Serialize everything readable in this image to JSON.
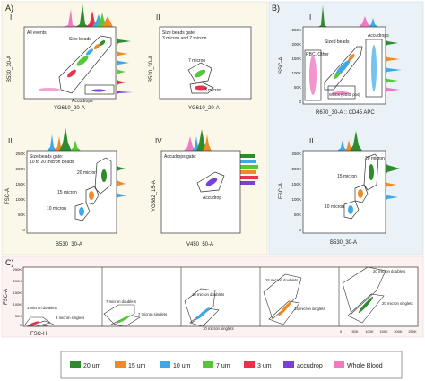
{
  "colors": {
    "um20": "#2e8b2e",
    "um15": "#f08a24",
    "um10": "#3fa9e6",
    "um7": "#55c83a",
    "um3": "#e8324a",
    "accudrop": "#7a3fd6",
    "blood": "#f07ac0",
    "bgA": "#fbf8ea",
    "bgB": "#eaf1f7",
    "bgC": "#fdf2f2"
  },
  "sections": {
    "A": "A)",
    "B": "B)",
    "C": "C)"
  },
  "panelA1": {
    "roman": "I",
    "label": "All events",
    "gate_size": "Size beads",
    "gate_accu": "Accudrops",
    "xlabel": "YG610_20-A",
    "ylabel": "B530_30-A"
  },
  "panelA2": {
    "roman": "II",
    "label": "Size beads gate:",
    "label2": "3 micron and 7 micron",
    "g7": "7 micron",
    "g3": "3 micron",
    "xlabel": "YG610_20-A",
    "ylabel": "B530_30-A"
  },
  "panelA3": {
    "roman": "III",
    "label": "Size beads gate:",
    "label2": "10 to 20 micron beads",
    "g20": "20 micron",
    "g15": "15 micron",
    "g10": "10 micron",
    "xlabel": "B530_30-A",
    "ylabel": "FSC-A",
    "yticks": [
      "250K",
      "200K",
      "150K",
      "100K",
      "50K",
      "0"
    ]
  },
  "panelA4": {
    "roman": "IV",
    "label": "Accudrops gate:",
    "gate": "Accudrop",
    "xlabel": "V450_50-A",
    "ylabel": "YG582_15-A"
  },
  "panelB1": {
    "roman": "I",
    "gate_size": "Sized beads",
    "gate_rbc": "RBC, Other",
    "gate_accu": "Accudrops",
    "gate_wbc": "WBCs (CD45 pos)",
    "xlabel": "R670_30-A :: CD45 APC",
    "ylabel": "SSC-A",
    "yticks": [
      "250K",
      "200K",
      "150K",
      "100K",
      "50K",
      "0"
    ]
  },
  "panelB2": {
    "roman": "II",
    "g20": "20 micron",
    "g15": "15 micron",
    "g10": "10 micron",
    "xlabel": "B530_30-A",
    "ylabel": "FSC-A",
    "yticks": [
      "250K",
      "200K",
      "150K",
      "100K",
      "50K",
      "0"
    ]
  },
  "panelC": {
    "xlabel": "FSC-H",
    "ylabel": "FSC-A",
    "yticks": [
      "250K",
      "200K",
      "150K",
      "100K",
      "50K",
      "0"
    ],
    "xticks": [
      "0",
      "50K",
      "100K",
      "150K",
      "200K",
      "250K"
    ],
    "sub": [
      {
        "doublets": "3 micron doublets",
        "singlets": "3 micron singlets"
      },
      {
        "doublets": "7 micron doublets",
        "singlets": "7 micron singlets"
      },
      {
        "doublets": "10 micron doublets",
        "singlets": "10 micron singlets"
      },
      {
        "doublets": "15 micron doublets",
        "singlets": "15 micron singlets"
      },
      {
        "doublets": "20 micron doublets",
        "singlets": "20 micron singlets"
      }
    ]
  },
  "legend": [
    {
      "label": "20 um",
      "color": "#2e8b2e"
    },
    {
      "label": "15 um",
      "color": "#f08a24"
    },
    {
      "label": "10 um",
      "color": "#3fa9e6"
    },
    {
      "label": "7 um",
      "color": "#55c83a"
    },
    {
      "label": "3 um",
      "color": "#e8324a"
    },
    {
      "label": "accudrop",
      "color": "#7a3fd6"
    },
    {
      "label": "Whole Blood",
      "color": "#f07ac0"
    }
  ]
}
